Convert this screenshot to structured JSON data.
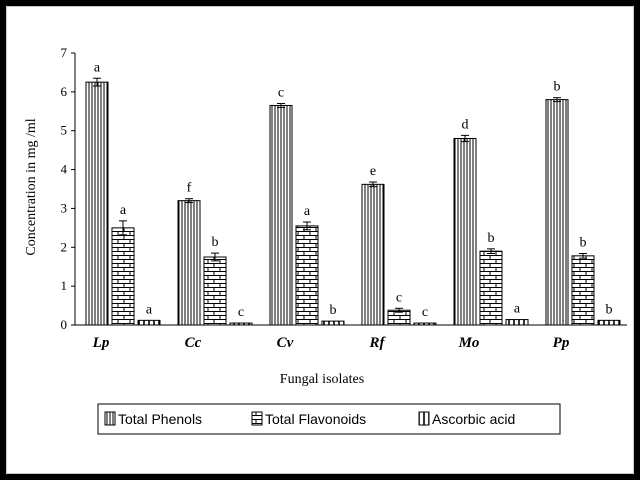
{
  "chart_data": {
    "type": "bar",
    "ylabel": "Concentration in mg /ml",
    "xlabel": "Fungal isolates",
    "ylim": [
      0,
      7
    ],
    "yticks": [
      "0",
      "1",
      "2",
      "3",
      "4",
      "5",
      "6",
      "7"
    ],
    "categories": [
      "Lp",
      "Cc",
      "Cv",
      "Rf",
      "Mo",
      "Pp"
    ],
    "series": [
      {
        "name": "Total Phenols",
        "pattern": "vertical-dense",
        "values": [
          6.25,
          3.2,
          5.65,
          3.62,
          4.8,
          5.8
        ],
        "errors": [
          0.1,
          0.05,
          0.05,
          0.06,
          0.08,
          0.05
        ],
        "letters": [
          "a",
          "f",
          "c",
          "e",
          "d",
          "b"
        ]
      },
      {
        "name": "Total Flavonoids",
        "pattern": "brick",
        "values": [
          2.5,
          1.75,
          2.55,
          0.38,
          1.9,
          1.78
        ],
        "errors": [
          0.18,
          0.1,
          0.1,
          0.05,
          0.06,
          0.06
        ],
        "letters": [
          "a",
          "b",
          "a",
          "c",
          "b",
          "b"
        ]
      },
      {
        "name": "Ascorbic acid",
        "pattern": "vertical-sparse",
        "values": [
          0.12,
          0.05,
          0.1,
          0.05,
          0.14,
          0.12
        ],
        "errors": [
          0,
          0,
          0,
          0,
          0,
          0
        ],
        "letters": [
          "a",
          "c",
          "b",
          "c",
          "a",
          "b"
        ]
      }
    ],
    "legend_position": "bottom",
    "grid": false,
    "colors": {
      "bar_fill": "#ffffff",
      "stroke": "#000000"
    }
  }
}
